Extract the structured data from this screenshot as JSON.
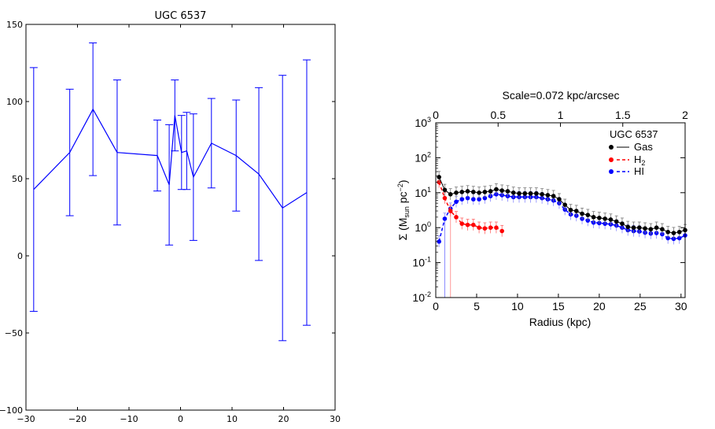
{
  "chart_data": [
    {
      "type": "line",
      "title": "UGC 6537",
      "xlabel": "",
      "ylabel": "",
      "xlim": [
        -30,
        30
      ],
      "ylim": [
        -100,
        150
      ],
      "xticks": [
        -30,
        -20,
        -10,
        0,
        10,
        20,
        30
      ],
      "xtick_labels": [
        "−30",
        "−20",
        "−10",
        "0",
        "10",
        "20",
        "30"
      ],
      "yticks": [
        -100,
        -50,
        0,
        50,
        100,
        150
      ],
      "ytick_labels": [
        "−100",
        "−50",
        "0",
        "50",
        "100",
        "150"
      ],
      "color": "#0000ff",
      "grid": false,
      "series": [
        {
          "x": [
            -28.5,
            -21.5,
            -17,
            -12.3,
            -4.5,
            -2.2,
            -1.1,
            0.2,
            1.2,
            2.5,
            6,
            10.8,
            15.2,
            19.8,
            24.5
          ],
          "y": [
            43,
            67,
            95,
            67,
            65,
            46,
            91,
            67,
            68,
            51,
            73,
            65,
            53,
            31,
            41
          ],
          "err": [
            79,
            41,
            43,
            47,
            23,
            39,
            23,
            24,
            25,
            41,
            29,
            36,
            56,
            86,
            86
          ]
        }
      ]
    },
    {
      "type": "scatter",
      "title": "Scale=0.072 kpc/arcsec",
      "xlabel": "Radius (kpc)",
      "ylabel": "Σ (M",
      "ylabel_sub": "sun",
      "ylabel_unit": " pc",
      "ylabel_sup": "−2",
      "ylabel_close": ")",
      "xlim": [
        0,
        30.5
      ],
      "xticks": [
        0,
        5,
        10,
        15,
        20,
        25,
        30
      ],
      "xtick_labels": [
        "0",
        "5",
        "10",
        "15",
        "20",
        "25",
        "30"
      ],
      "ylim_log10": [
        -2,
        3
      ],
      "yscale": "log",
      "ytick_exponents": [
        -2,
        -1,
        0,
        1,
        2,
        3
      ],
      "ytick_base": "10",
      "ytick_exp_labels": [
        "-2",
        "-1",
        "0",
        "1",
        "2",
        "3"
      ],
      "top_axis": {
        "xlim": [
          0,
          2
        ],
        "ticks": [
          0,
          0.5,
          1,
          1.5,
          2
        ],
        "tick_labels": [
          "0",
          "0.5",
          "1",
          "1.5",
          "2"
        ]
      },
      "legend": {
        "title": "UGC 6537",
        "position": "top-right",
        "entries": [
          {
            "label": "Gas",
            "color": "#000000",
            "sub": ""
          },
          {
            "label": "H",
            "color": "#ff0000",
            "sub": "2"
          },
          {
            "label": "HI",
            "color": "#0000ff",
            "sub": ""
          }
        ]
      },
      "series": [
        {
          "name": "Gas",
          "color": "#000000",
          "x": [
            0.4,
            1.1,
            1.8,
            2.5,
            3.2,
            3.9,
            4.6,
            5.3,
            6,
            6.7,
            7.4,
            8.1,
            8.8,
            9.5,
            10.2,
            10.9,
            11.6,
            12.3,
            13,
            13.7,
            14.4,
            15.1,
            15.8,
            16.5,
            17.2,
            17.9,
            18.6,
            19.3,
            20,
            20.7,
            21.4,
            22.1,
            22.8,
            23.5,
            24.2,
            24.9,
            25.6,
            26.3,
            27,
            27.7,
            28.4,
            29.1,
            29.8,
            30.5
          ],
          "y": [
            28,
            12,
            9,
            10,
            10.5,
            11,
            10.5,
            10,
            10.5,
            11,
            12.5,
            11.5,
            11,
            10,
            9.5,
            9.5,
            9.5,
            9.5,
            9,
            8.5,
            8,
            6.5,
            4.5,
            3.2,
            3.0,
            2.5,
            2.3,
            2.0,
            1.9,
            1.8,
            1.7,
            1.5,
            1.3,
            1.05,
            1.0,
            1.0,
            0.95,
            0.9,
            1.0,
            0.9,
            0.75,
            0.7,
            0.75,
            0.85
          ]
        },
        {
          "name": "H2",
          "color": "#ff0000",
          "x": [
            0.4,
            1.1,
            1.8,
            2.5,
            3.2,
            3.9,
            4.6,
            5.3,
            6,
            6.7,
            7.4,
            8.1
          ],
          "y": [
            20,
            7.0,
            3.0,
            2.0,
            1.3,
            1.2,
            1.2,
            1.0,
            0.95,
            1.0,
            1.0,
            0.8
          ]
        },
        {
          "name": "HI",
          "color": "#0000ff",
          "x": [
            0.4,
            1.1,
            1.8,
            2.5,
            3.2,
            3.9,
            4.6,
            5.3,
            6,
            6.7,
            7.4,
            8.1,
            8.8,
            9.5,
            10.2,
            10.9,
            11.6,
            12.3,
            13,
            13.7,
            14.4,
            15.1,
            15.8,
            16.5,
            17.2,
            17.9,
            18.6,
            19.3,
            20,
            20.7,
            21.4,
            22.1,
            22.8,
            23.5,
            24.2,
            24.9,
            25.6,
            26.3,
            27,
            27.7,
            28.4,
            29.1,
            29.8,
            30.5
          ],
          "y": [
            0.4,
            1.8,
            3.5,
            5.5,
            6.5,
            7.0,
            6.5,
            6.5,
            7.0,
            8.0,
            9.0,
            8.5,
            8.0,
            7.5,
            7.5,
            7.5,
            7.5,
            7.5,
            7.0,
            6.5,
            6.0,
            5.0,
            3.3,
            2.4,
            2.2,
            1.8,
            1.6,
            1.4,
            1.35,
            1.3,
            1.25,
            1.15,
            1.0,
            0.85,
            0.8,
            0.78,
            0.72,
            0.68,
            0.7,
            0.65,
            0.5,
            0.48,
            0.5,
            0.6
          ]
        }
      ]
    }
  ]
}
